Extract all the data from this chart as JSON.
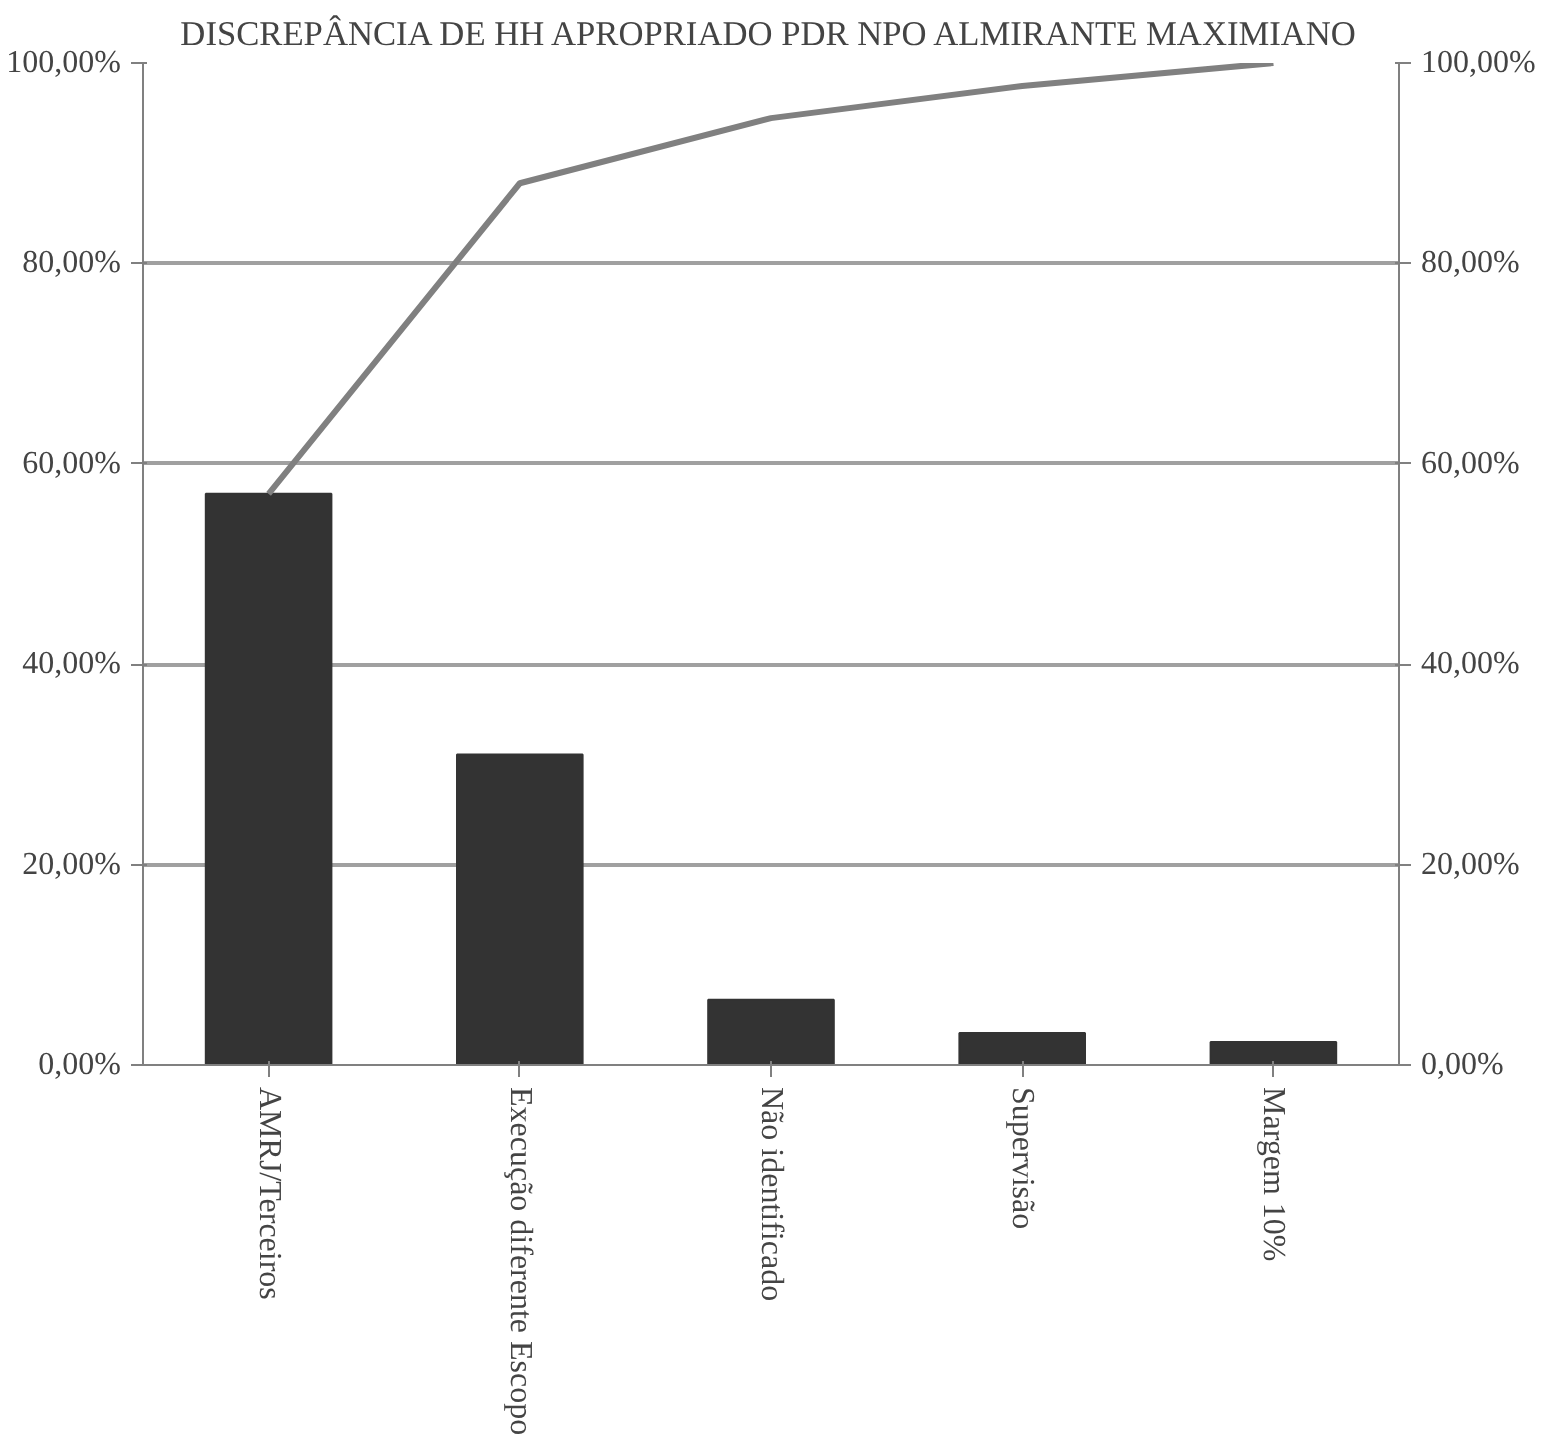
{
  "chart_data": {
    "type": "bar",
    "title": "DISCREPÂNCIA DE HH APROPRIADO PDR NPO ALMIRANTE MAXIMIANO",
    "categories": [
      "AMRJ/Terceiros",
      "Execução diferente Escopo",
      "Não identificado",
      "Supervisão",
      "Margem 10%"
    ],
    "series": [
      {
        "color": "#333333",
        "values": [
          57.0,
          31.0,
          6.5,
          3.2,
          2.3
        ]
      },
      {
        "type": "line",
        "color": "#808080",
        "values": [
          57.0,
          88.0,
          94.5,
          97.7,
          100.0
        ]
      }
    ],
    "ylim": [
      0,
      100
    ],
    "yticks": [
      {
        "value": 0,
        "label": "0,00%"
      },
      {
        "value": 20,
        "label": "20,00%"
      },
      {
        "value": 40,
        "label": "40,00%"
      },
      {
        "value": 60,
        "label": "60,00%"
      },
      {
        "value": 80,
        "label": "80,00%"
      },
      {
        "value": 100,
        "label": "100,00%"
      }
    ],
    "y2lim": [
      0,
      100
    ],
    "y2ticks": [
      {
        "value": 0,
        "label": "0,00%"
      },
      {
        "value": 20,
        "label": "20,00%"
      },
      {
        "value": 40,
        "label": "40,00%"
      },
      {
        "value": 60,
        "label": "60,00%"
      },
      {
        "value": 80,
        "label": "80,00%"
      },
      {
        "value": 100,
        "label": "100,00%"
      }
    ],
    "grid": "y"
  }
}
